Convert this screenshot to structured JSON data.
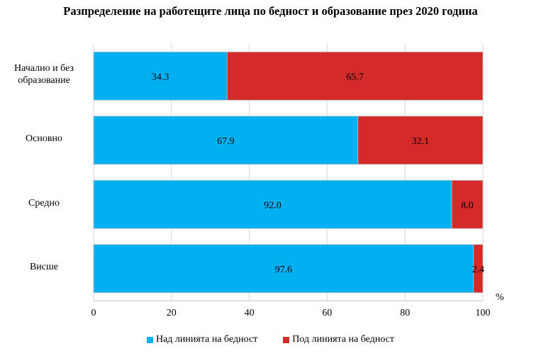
{
  "chart_data": {
    "type": "bar",
    "orientation": "horizontal",
    "stacked": true,
    "title": "Разпределение на работещите лица по бедност и образование през 2020 година",
    "categories": [
      "Начално и без\nобразование",
      "Основно",
      "Средно",
      "Висше"
    ],
    "series": [
      {
        "name": "Над линията на бедност",
        "color": "#00b0f0",
        "values": [
          34.3,
          67.9,
          92.0,
          97.6
        ],
        "labels": [
          "34.3",
          "67.9",
          "92.0",
          "97.6"
        ]
      },
      {
        "name": "Под линията на бедност",
        "color": "#d42a2a",
        "values": [
          65.7,
          32.1,
          8.0,
          2.4
        ],
        "labels": [
          "65.7",
          "32.1",
          "8.0",
          "2.4"
        ]
      }
    ],
    "xlim": [
      0,
      100
    ],
    "xticks": [
      "0",
      "20",
      "40",
      "60",
      "80",
      "100"
    ],
    "unit": "%",
    "grid": true,
    "legend_position": "bottom"
  }
}
